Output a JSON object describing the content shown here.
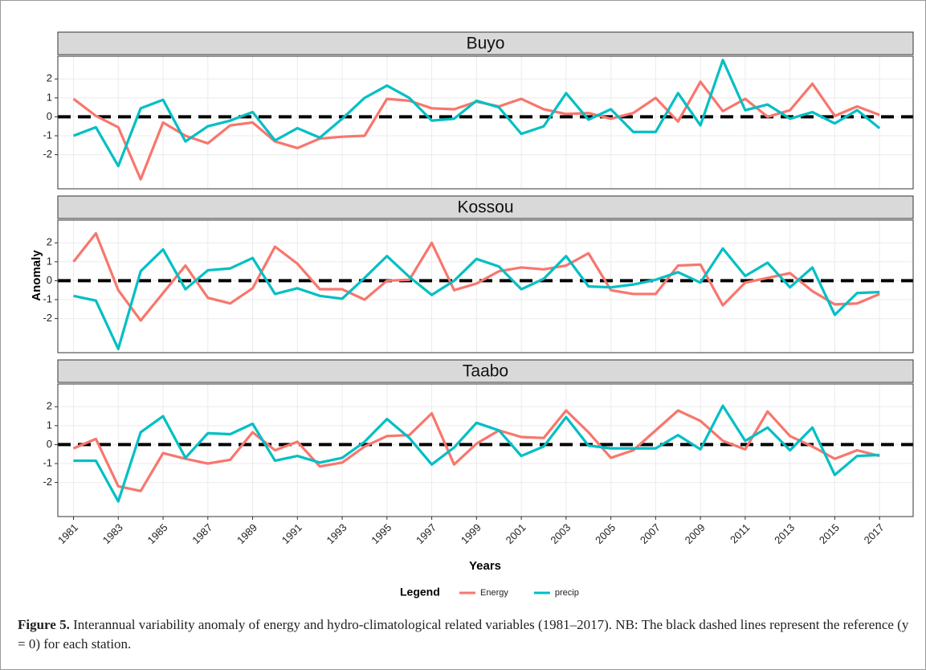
{
  "chart_data": [
    {
      "type": "line",
      "title": "Buyo",
      "x": [
        1981,
        1982,
        1983,
        1984,
        1985,
        1986,
        1987,
        1988,
        1989,
        1990,
        1991,
        1992,
        1993,
        1994,
        1995,
        1996,
        1997,
        1998,
        1999,
        2000,
        2001,
        2002,
        2003,
        2004,
        2005,
        2006,
        2007,
        2008,
        2009,
        2010,
        2011,
        2012,
        2013,
        2014,
        2015,
        2016,
        2017
      ],
      "series": [
        {
          "name": "Energy",
          "color": "#F8766D",
          "values": [
            0.95,
            0.05,
            -0.55,
            -3.3,
            -0.3,
            -1.0,
            -1.4,
            -0.45,
            -0.3,
            -1.3,
            -1.65,
            -1.15,
            -1.05,
            -1.0,
            0.95,
            0.85,
            0.45,
            0.4,
            0.8,
            0.55,
            0.95,
            0.4,
            0.15,
            0.2,
            -0.1,
            0.2,
            1.0,
            -0.25,
            1.85,
            0.3,
            0.95,
            0.0,
            0.35,
            1.75,
            0.05,
            0.55,
            0.1
          ]
        },
        {
          "name": "precip",
          "color": "#00BFC4",
          "values": [
            -1.0,
            -0.55,
            -2.6,
            0.45,
            0.9,
            -1.3,
            -0.5,
            -0.2,
            0.25,
            -1.25,
            -0.6,
            -1.1,
            -0.1,
            1.0,
            1.65,
            1.0,
            -0.2,
            -0.1,
            0.85,
            0.5,
            -0.9,
            -0.5,
            1.25,
            -0.15,
            0.4,
            -0.8,
            -0.8,
            1.25,
            -0.45,
            3.0,
            0.35,
            0.65,
            -0.1,
            0.25,
            -0.35,
            0.35,
            -0.6
          ]
        }
      ],
      "xlim": [
        1980.3,
        2018.5
      ],
      "xticks": [
        1981,
        1983,
        1985,
        1987,
        1989,
        1991,
        1993,
        1995,
        1997,
        1999,
        2001,
        2003,
        2005,
        2007,
        2009,
        2011,
        2013,
        2015,
        2017
      ],
      "ylim": [
        -3.8,
        3.2
      ],
      "yticks": [
        -2,
        -1,
        0,
        1,
        2
      ],
      "grid": true
    },
    {
      "type": "line",
      "title": "Kossou",
      "x": [
        1981,
        1982,
        1983,
        1984,
        1985,
        1986,
        1987,
        1988,
        1989,
        1990,
        1991,
        1992,
        1993,
        1994,
        1995,
        1996,
        1997,
        1998,
        1999,
        2000,
        2001,
        2002,
        2003,
        2004,
        2005,
        2006,
        2007,
        2008,
        2009,
        2010,
        2011,
        2012,
        2013,
        2014,
        2015,
        2016,
        2017
      ],
      "series": [
        {
          "name": "Energy",
          "color": "#F8766D",
          "values": [
            1.0,
            2.5,
            -0.5,
            -2.1,
            -0.65,
            0.8,
            -0.9,
            -1.2,
            -0.4,
            1.8,
            0.9,
            -0.45,
            -0.45,
            -1.0,
            0.0,
            0.05,
            2.0,
            -0.5,
            -0.15,
            0.5,
            0.7,
            0.6,
            0.8,
            1.45,
            -0.5,
            -0.7,
            -0.7,
            0.8,
            0.85,
            -1.3,
            -0.1,
            0.15,
            0.4,
            -0.55,
            -1.25,
            -1.2,
            -0.7
          ]
        },
        {
          "name": "precip",
          "color": "#00BFC4",
          "values": [
            -0.8,
            -1.05,
            -3.6,
            0.5,
            1.65,
            -0.45,
            0.55,
            0.65,
            1.2,
            -0.7,
            -0.4,
            -0.8,
            -0.95,
            0.15,
            1.3,
            0.2,
            -0.75,
            0.0,
            1.15,
            0.75,
            -0.45,
            0.1,
            1.3,
            -0.3,
            -0.35,
            -0.2,
            0.05,
            0.45,
            -0.1,
            1.7,
            0.25,
            0.95,
            -0.35,
            0.7,
            -1.8,
            -0.65,
            -0.6
          ]
        }
      ],
      "xlim": [
        1980.3,
        2018.5
      ],
      "xticks": [
        1981,
        1983,
        1985,
        1987,
        1989,
        1991,
        1993,
        1995,
        1997,
        1999,
        2001,
        2003,
        2005,
        2007,
        2009,
        2011,
        2013,
        2015,
        2017
      ],
      "ylim": [
        -3.8,
        3.2
      ],
      "yticks": [
        -2,
        -1,
        0,
        1,
        2
      ],
      "grid": true
    },
    {
      "type": "line",
      "title": "Taabo",
      "x": [
        1981,
        1982,
        1983,
        1984,
        1985,
        1986,
        1987,
        1988,
        1989,
        1990,
        1991,
        1992,
        1993,
        1994,
        1995,
        1996,
        1997,
        1998,
        1999,
        2000,
        2001,
        2002,
        2003,
        2004,
        2005,
        2006,
        2007,
        2008,
        2009,
        2010,
        2011,
        2012,
        2013,
        2014,
        2015,
        2016,
        2017
      ],
      "series": [
        {
          "name": "Energy",
          "color": "#F8766D",
          "values": [
            -0.2,
            0.3,
            -2.2,
            -2.45,
            -0.45,
            -0.75,
            -1.0,
            -0.8,
            0.65,
            -0.3,
            0.15,
            -1.15,
            -0.95,
            -0.1,
            0.45,
            0.5,
            1.65,
            -1.05,
            0.05,
            0.75,
            0.4,
            0.35,
            1.8,
            0.65,
            -0.7,
            -0.3,
            0.75,
            1.8,
            1.25,
            0.2,
            -0.25,
            1.75,
            0.45,
            -0.1,
            -0.75,
            -0.3,
            -0.6
          ]
        },
        {
          "name": "precip",
          "color": "#00BFC4",
          "values": [
            -0.85,
            -0.85,
            -3.0,
            0.65,
            1.5,
            -0.7,
            0.6,
            0.55,
            1.1,
            -0.85,
            -0.6,
            -0.95,
            -0.7,
            0.15,
            1.35,
            0.35,
            -1.05,
            -0.15,
            1.15,
            0.75,
            -0.6,
            -0.1,
            1.45,
            -0.05,
            -0.2,
            -0.2,
            -0.2,
            0.5,
            -0.25,
            2.05,
            0.2,
            0.9,
            -0.3,
            0.9,
            -1.6,
            -0.6,
            -0.55
          ]
        }
      ],
      "xlim": [
        1980.3,
        2018.5
      ],
      "xticks": [
        1981,
        1983,
        1985,
        1987,
        1989,
        1991,
        1993,
        1995,
        1997,
        1999,
        2001,
        2003,
        2005,
        2007,
        2009,
        2011,
        2013,
        2015,
        2017
      ],
      "ylim": [
        -3.8,
        3.2
      ],
      "yticks": [
        -2,
        -1,
        0,
        1,
        2
      ],
      "grid": true
    }
  ],
  "reference_y": 0,
  "y_label": "Anomaly",
  "x_label": "Years",
  "legend_title": "Legend",
  "caption": {
    "label": "Figure 5.",
    "text": "Interannual variability anomaly of energy and hydro-climatological related variables (1981–2017). NB: The black dashed lines represent the reference (y = 0) for each station."
  }
}
